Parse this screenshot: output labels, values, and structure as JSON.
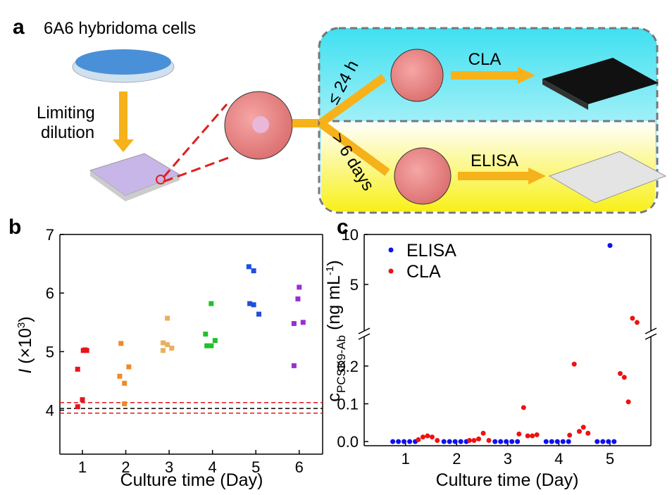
{
  "panels": {
    "a": "a",
    "b": "b",
    "c": "c"
  },
  "diagram": {
    "cells": "6A6 hybridoma cells",
    "dilution_1": "Limiting",
    "dilution_2": "dilution",
    "fast": "≤ 24 h",
    "slow": "> 6 days",
    "cla": "CLA",
    "elisa": "ELISA"
  },
  "chart_data": [
    {
      "type": "scatter",
      "marker": "square",
      "xlabel": "Culture time (Day)",
      "ylabel_symbol": "I",
      "ylabel_unit": " (×10",
      "ylabel_exp": "3",
      "ylabel_end": ")",
      "xlim": [
        0.48,
        6.54
      ],
      "xticks": [
        1,
        2,
        3,
        4,
        5,
        6
      ],
      "ylim": [
        3.25,
        7
      ],
      "yticks": [
        4,
        5,
        6,
        7
      ],
      "hlines": [
        {
          "value": 4.13,
          "color": "#e8141c"
        },
        {
          "value": 4.03,
          "color": "#000000"
        },
        {
          "value": 3.95,
          "color": "#e8141c"
        }
      ],
      "series": [
        {
          "color": "#e8141c",
          "x": [
            0.89,
            1.02,
            1.06,
            1.1,
            1.0,
            0.89
          ],
          "values": [
            4.7,
            5.02,
            5.03,
            5.02,
            4.18,
            4.06
          ]
        },
        {
          "color": "#f08a24",
          "x": [
            1.89,
            1.86,
            1.97,
            2.07,
            1.97
          ],
          "values": [
            5.14,
            4.58,
            4.46,
            4.74,
            4.11
          ]
        },
        {
          "color": "#e8b060",
          "x": [
            2.96,
            2.86,
            2.96,
            3.06,
            2.86
          ],
          "values": [
            5.57,
            5.15,
            5.12,
            5.06,
            5.02
          ]
        },
        {
          "color": "#22c02a",
          "x": [
            3.97,
            3.84,
            3.87,
            3.97,
            4.06
          ],
          "values": [
            5.82,
            5.3,
            5.1,
            5.1,
            5.19
          ]
        },
        {
          "color": "#1f4fe0",
          "x": [
            4.84,
            4.95,
            4.86,
            4.95,
            5.07
          ],
          "values": [
            6.45,
            6.38,
            5.82,
            5.8,
            5.64
          ]
        },
        {
          "color": "#9a2fd0",
          "x": [
            6.0,
            5.97,
            5.88,
            6.09,
            5.88
          ],
          "values": [
            6.1,
            5.9,
            5.48,
            5.5,
            4.76
          ]
        }
      ]
    },
    {
      "type": "scatter",
      "marker": "circle",
      "legend": "upper left",
      "xlabel": "Culture time (Day)",
      "ylabel_symbol": "c",
      "ylabel_sub": "PCSK9-Ab",
      "ylabel_unit": " (ng mL",
      "ylabel_exp": "-1",
      "ylabel_end": ")",
      "xlim": [
        0.19,
        5.8
      ],
      "xticks": [
        1,
        2,
        3,
        4,
        5
      ],
      "segments": [
        {
          "ylim": [
            -0.011,
            0.278
          ],
          "yticks": [
            {
              "value": 0,
              "label": "0.0"
            },
            0.1,
            0.2
          ]
        },
        {
          "ylim": [
            0.35,
            10
          ],
          "yticks": [
            5,
            10
          ]
        }
      ],
      "series": [
        {
          "name": "ELISA",
          "color": "#1010ee",
          "x": [
            0.75,
            0.86,
            0.97,
            1.08,
            1.19,
            1.75,
            1.86,
            1.97,
            2.08,
            2.19,
            2.75,
            2.86,
            2.97,
            3.08,
            3.19,
            3.75,
            3.86,
            3.97,
            4.08,
            4.19,
            4.75,
            4.86,
            4.97,
            5.0,
            5.08
          ],
          "values": [
            0,
            0,
            0,
            0,
            0,
            0,
            0,
            0,
            0,
            0,
            0,
            0,
            0,
            0,
            0,
            0,
            0,
            0,
            0,
            0,
            0,
            0,
            0,
            8.9,
            0
          ]
        },
        {
          "name": "CLA",
          "color": "#ee1111",
          "x": [
            1.25,
            1.34,
            1.43,
            1.52,
            1.62,
            2.25,
            2.34,
            2.43,
            2.52,
            2.63,
            3.22,
            3.31,
            3.39,
            3.48,
            3.57,
            4.21,
            4.3,
            4.4,
            4.48,
            4.57,
            5.2,
            5.28,
            5.36,
            5.44,
            5.53
          ],
          "values": [
            0.005,
            0.012,
            0.015,
            0.012,
            0.003,
            0.003,
            0.003,
            0.007,
            0.022,
            0.003,
            0.02,
            0.09,
            0.015,
            0.015,
            0.018,
            0.017,
            0.205,
            0.027,
            0.038,
            0.022,
            0.18,
            0.17,
            0.105,
            1.62,
            1.2
          ]
        }
      ]
    }
  ]
}
